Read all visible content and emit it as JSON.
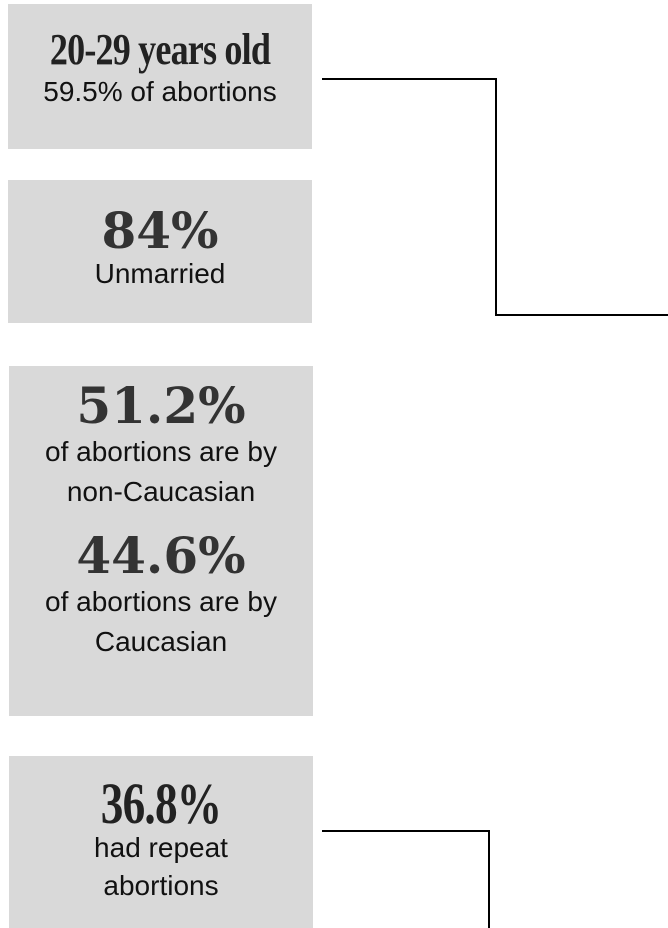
{
  "boxes": {
    "age": {
      "stat": "20-29 years old",
      "caption": "59.5% of abortions"
    },
    "marital": {
      "stat": "84%",
      "caption": "Unmarried"
    },
    "race": {
      "stat_a": "51.2%",
      "caption_a_line1": "of abortions are by",
      "caption_a_line2": "non-Caucasian",
      "stat_b": "44.6%",
      "caption_b_line1": "of abortions are by",
      "caption_b_line2": "Caucasian"
    },
    "repeat": {
      "stat": "36.8%",
      "caption_line1": "had repeat",
      "caption_line2": "abortions"
    }
  },
  "colors": {
    "box_fill": "#d9d9d9",
    "connector": "#000000",
    "stat_text": "#333333"
  }
}
